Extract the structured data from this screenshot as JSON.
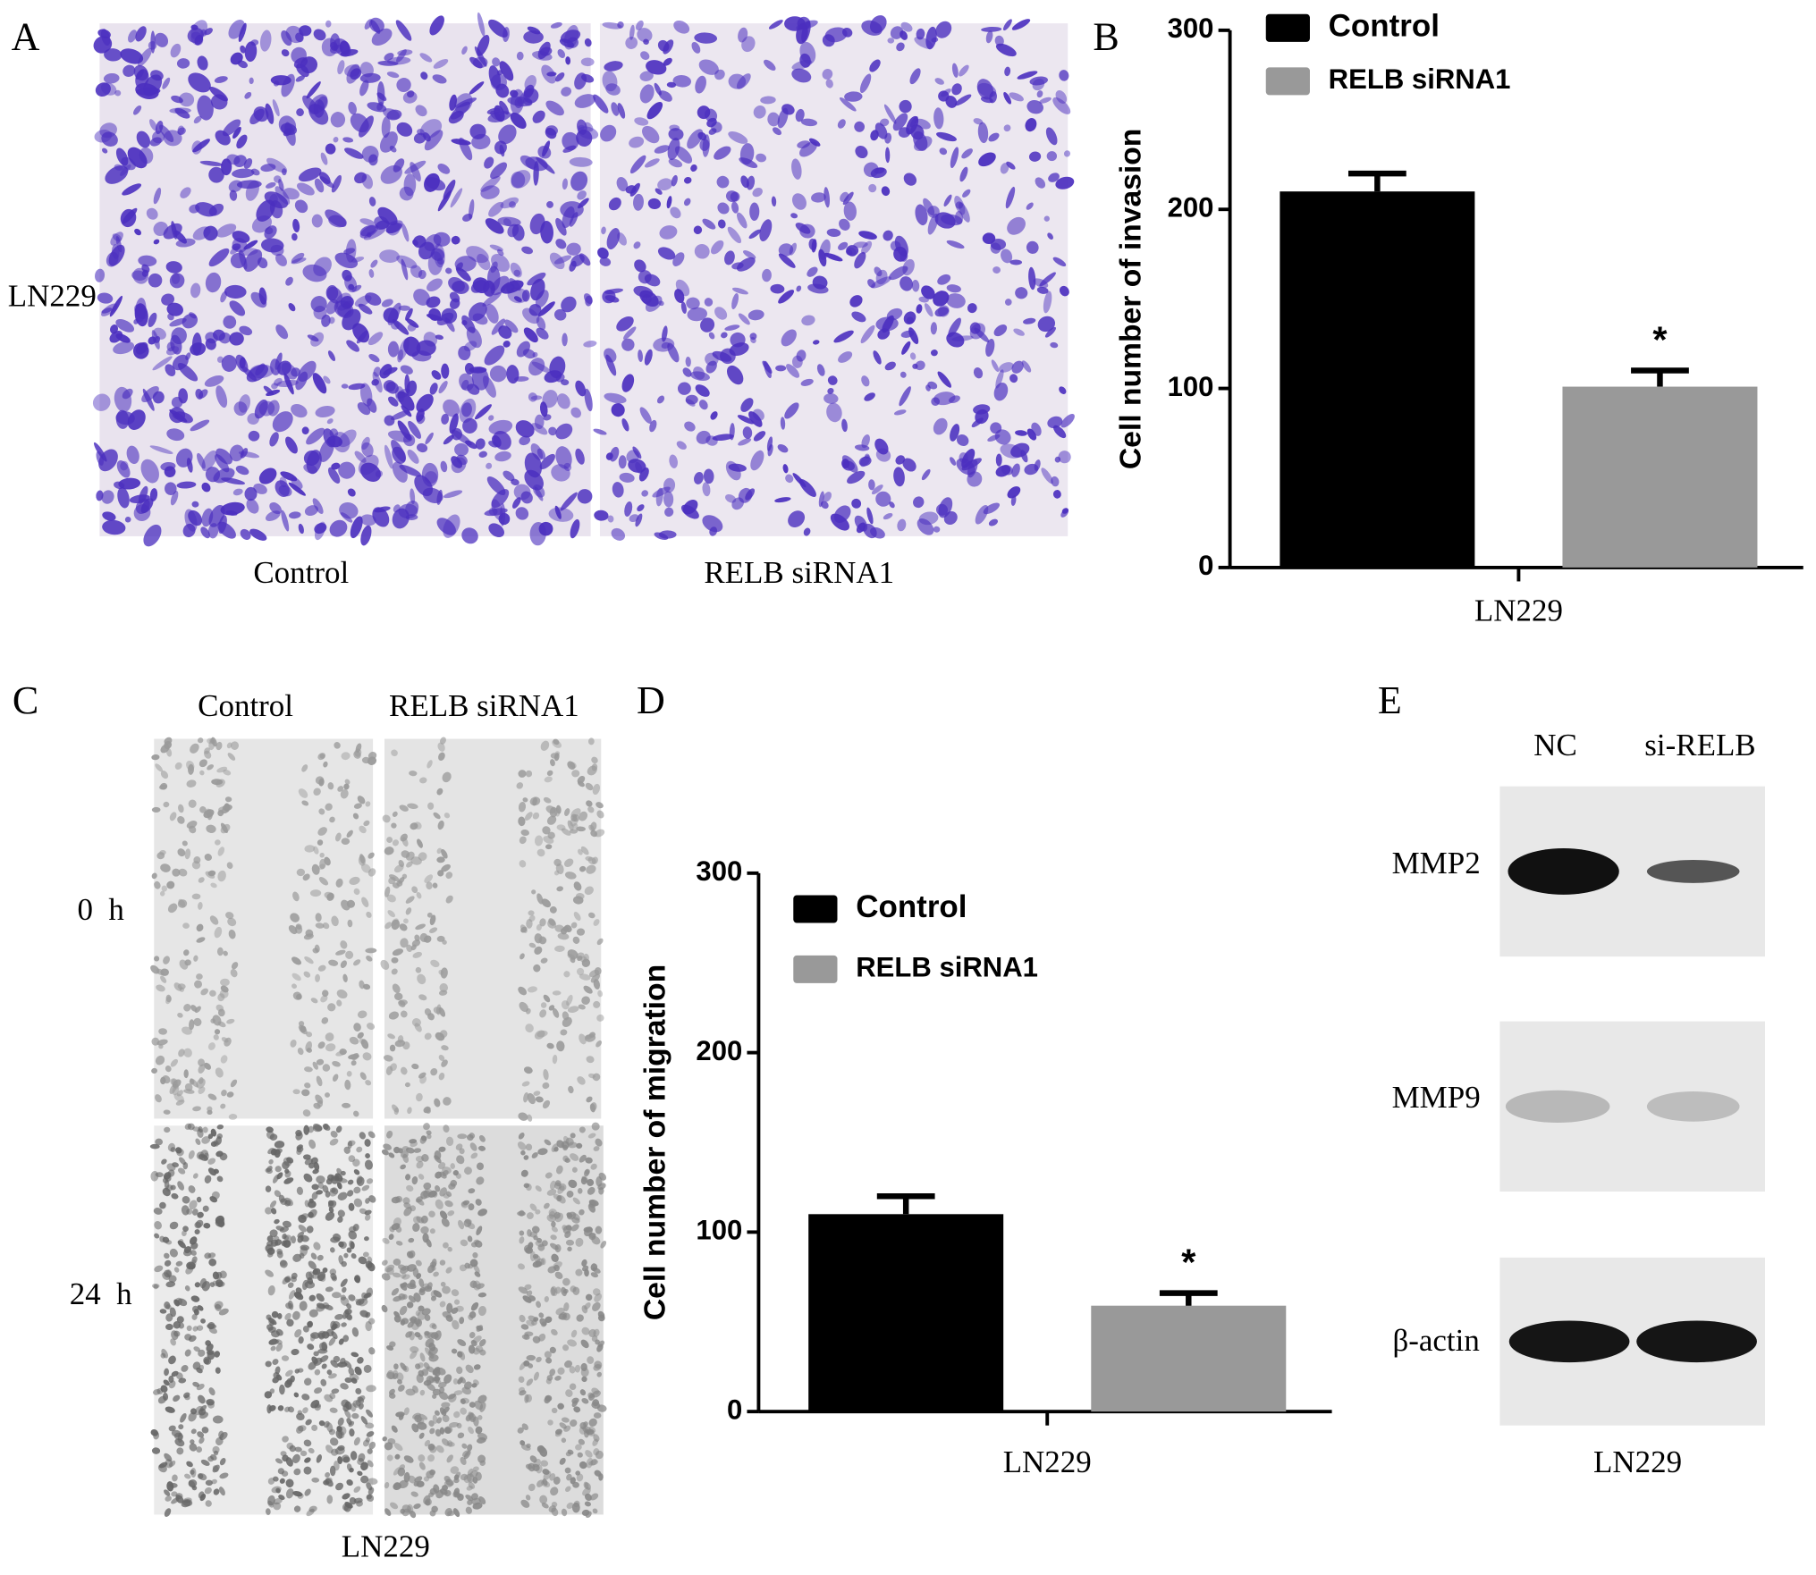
{
  "panels": {
    "A": {
      "label": "A",
      "row_label": "LN229",
      "columns": [
        "Control",
        "RELB siRNA1"
      ]
    },
    "C": {
      "label": "C",
      "columns": [
        "Control",
        "RELB siRNA1"
      ],
      "rows": [
        "0  h",
        "24  h"
      ],
      "caption": "LN229"
    },
    "E": {
      "label": "E",
      "lanes": [
        "NC",
        "si-RELB"
      ],
      "bands": [
        "MMP2",
        "MMP9",
        "β-actin"
      ],
      "caption": "LN229"
    }
  },
  "chart_data": [
    {
      "type": "bar",
      "panel_label": "B",
      "ylabel": "Cell number of invasion",
      "categories": [
        "LN229"
      ],
      "series": [
        {
          "name": "Control",
          "color": "#000000",
          "values": [
            210
          ],
          "errors": [
            10
          ]
        },
        {
          "name": "RELB siRNA1",
          "color": "#999999",
          "values": [
            101
          ],
          "errors": [
            9
          ],
          "annotation": "*"
        }
      ],
      "ylim": [
        0,
        300
      ],
      "yticks": [
        0,
        100,
        200,
        300
      ]
    },
    {
      "type": "bar",
      "panel_label": "D",
      "ylabel": "Cell number of migration",
      "categories": [
        "LN229"
      ],
      "series": [
        {
          "name": "Control",
          "color": "#000000",
          "values": [
            110
          ],
          "errors": [
            10
          ]
        },
        {
          "name": "RELB siRNA1",
          "color": "#999999",
          "values": [
            59
          ],
          "errors": [
            7
          ],
          "annotation": "*"
        }
      ],
      "ylim": [
        0,
        300
      ],
      "yticks": [
        0,
        100,
        200,
        300
      ]
    }
  ]
}
